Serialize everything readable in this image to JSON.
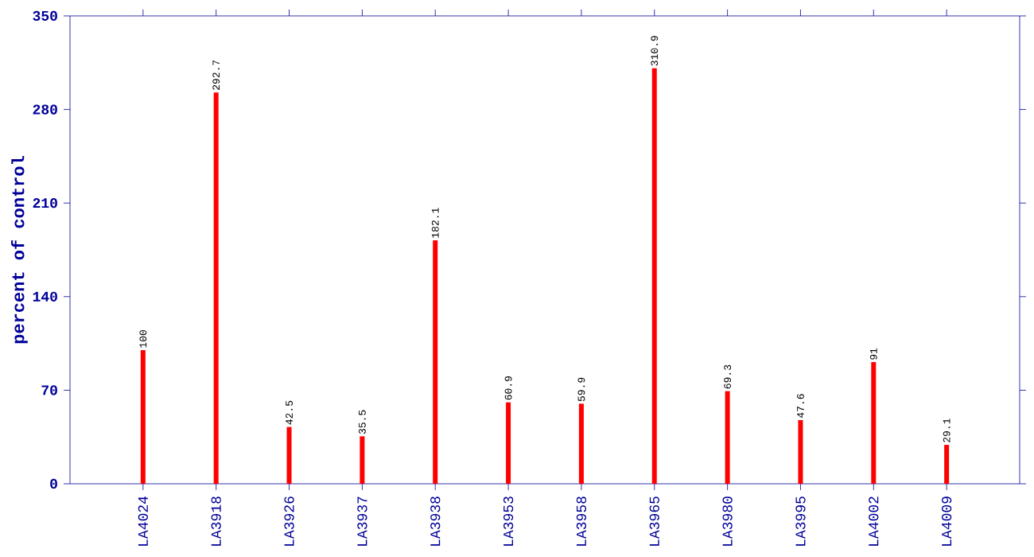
{
  "chart_data": {
    "type": "bar",
    "ylabel": "percent of control",
    "categories": [
      "LA4024",
      "LA3918",
      "LA3926",
      "LA3937",
      "LA3938",
      "LA3953",
      "LA3958",
      "LA3965",
      "LA3980",
      "LA3995",
      "LA4002",
      "LA4009"
    ],
    "values": [
      100,
      292.7,
      42.5,
      35.5,
      182.1,
      60.9,
      59.9,
      310.9,
      69.3,
      47.6,
      91,
      29.1
    ],
    "color": "#ff0000",
    "ylim": [
      0,
      350
    ],
    "yticks": [
      0,
      70,
      140,
      210,
      280,
      350
    ],
    "grid": false,
    "data_labels": true
  }
}
